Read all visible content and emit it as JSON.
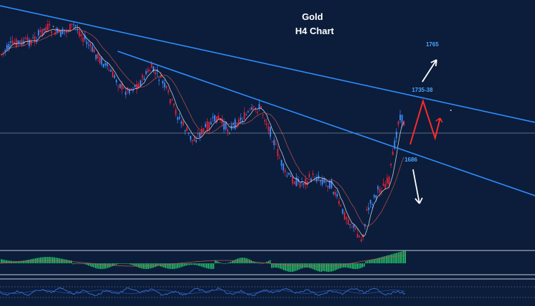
{
  "chart_data": {
    "type": "candlestick",
    "title": "Gold",
    "subtitle": "H4 Chart",
    "level_labels": [
      "1765",
      "1735-38",
      "1686"
    ],
    "colors": {
      "background": "#0b1d3a",
      "bull": "#3d8bff",
      "bear": "#e8203a",
      "trendline": "#2e8cff",
      "hline": "#a9b4c6",
      "arrow": "#ffffff",
      "zigzag": "#ff2a2a",
      "label": "#4da3ff",
      "histogram": "#25c26a",
      "oscillator": "#3a6fd8"
    },
    "grid": false
  }
}
